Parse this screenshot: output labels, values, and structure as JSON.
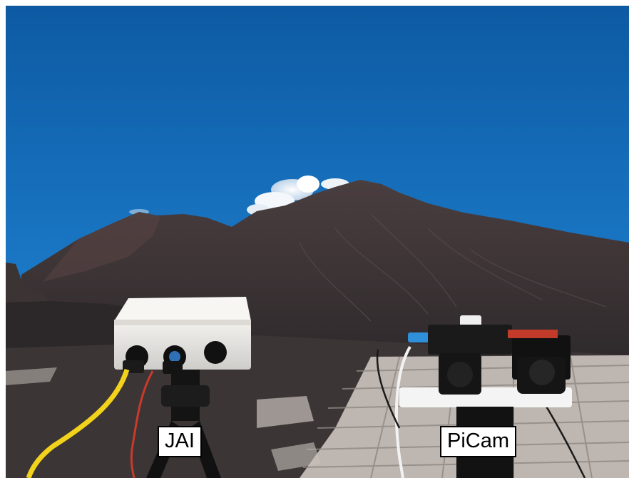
{
  "labels": {
    "jai": "JAI",
    "picam": "PiCam"
  },
  "colors": {
    "sky_top": "#0d5aa3",
    "sky_bottom": "#2b98dc",
    "volcano": "#3e3536",
    "ground": "#3b3536",
    "paving": "#cfc9c4",
    "enclosure": "#e9e7e3",
    "cable_yellow": "#f2d21b",
    "cable_red": "#c93a2a"
  },
  "icons": [
    "camera-enclosure-icon",
    "tripod-icon",
    "raspberry-pi-camera-icon"
  ]
}
